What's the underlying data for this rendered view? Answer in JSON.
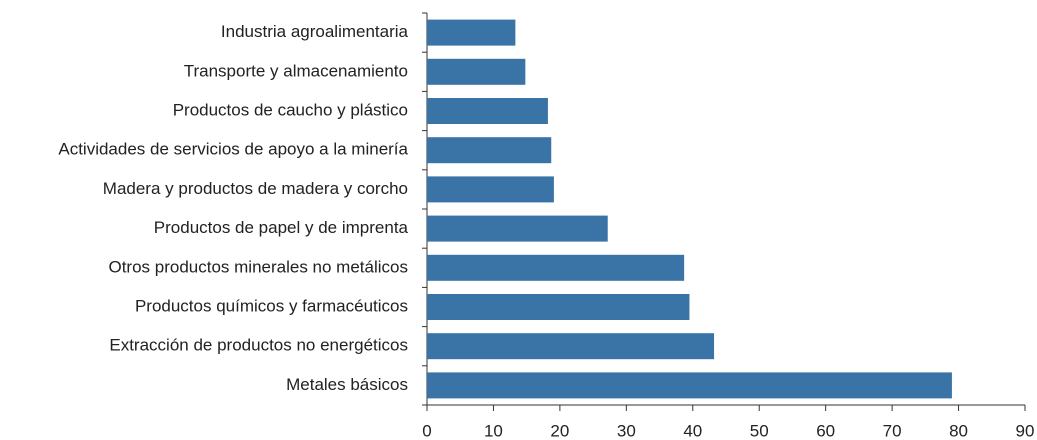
{
  "chart_data": {
    "type": "bar",
    "orientation": "horizontal",
    "color": "#3a73a5",
    "categories": [
      "Industria agroalimentaria",
      "Transporte y almacenamiento",
      "Productos de caucho y plástico",
      "Actividades de servicios de apoyo a la minería",
      "Madera y productos de madera y corcho",
      "Productos de papel y de imprenta",
      "Otros productos minerales no metálicos",
      "Productos químicos y farmacéuticos",
      "Extracción de productos no energéticos",
      "Metales básicos"
    ],
    "values": [
      13.3,
      14.8,
      18.2,
      18.7,
      19.1,
      27.2,
      38.7,
      39.5,
      43.2,
      79.0
    ],
    "xlim": [
      0,
      90
    ],
    "xticks": [
      0,
      10,
      20,
      30,
      40,
      50,
      60,
      70,
      80,
      90
    ]
  }
}
